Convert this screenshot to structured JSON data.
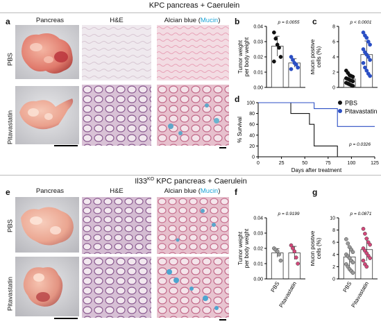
{
  "top_title": "KPC pancreas + Caerulein",
  "bottom_title": "Il33",
  "bottom_title_sup": "KO",
  "bottom_title_rest": " KPC pancreas + Caerulein",
  "panel_labels": {
    "a": "a",
    "b": "b",
    "c": "c",
    "d": "d",
    "e": "e",
    "f": "f",
    "g": "g"
  },
  "columns": {
    "pancreas": "Pancreas",
    "he": "H&E",
    "alcian_prefix": "Alcian blue (",
    "alcian_mucin": "Mucin",
    "alcian_suffix": ")"
  },
  "rows": {
    "pbs": "PBS",
    "pit": "Pitavastatin"
  },
  "colors": {
    "pbs": "#111111",
    "pit": "#2b4fc4",
    "mucin": "#1ba3d6",
    "pink": "#d2487a",
    "gray": "#9a9a9a"
  },
  "chart_data": [
    {
      "id": "b",
      "type": "scatter",
      "ylabel_line1": "Tumor weight",
      "ylabel_line2": "per body weight",
      "pvalue": "p = 0.0055",
      "ylim": [
        0,
        0.04
      ],
      "yticks": [
        "0.00",
        "0.01",
        "0.02",
        "0.03",
        "0.04"
      ],
      "categories": [
        "PBS",
        "Pitavastatin"
      ],
      "series": [
        {
          "values": [
            0.036,
            0.032,
            0.028,
            0.026,
            0.02,
            0.017
          ]
        },
        {
          "values": [
            0.02,
            0.018,
            0.016,
            0.015,
            0.013,
            0.012
          ]
        }
      ],
      "means": [
        0.027,
        0.016
      ]
    },
    {
      "id": "c",
      "type": "scatter",
      "ylabel_line1": "Mucin positive",
      "ylabel_line2": "cells (%)",
      "pvalue": "p < 0.0001",
      "ylim": [
        0,
        8
      ],
      "yticks": [
        "0",
        "2",
        "4",
        "6",
        "8"
      ],
      "categories": [
        "PBS",
        "Pitavastatin"
      ],
      "series": [
        {
          "values": [
            2.2,
            1.9,
            1.6,
            1.5,
            1.4,
            1.2,
            1.1,
            1.0,
            0.9,
            0.8,
            0.6,
            0.5,
            0.4,
            0.3,
            0.2
          ]
        },
        {
          "values": [
            7.2,
            6.8,
            6.5,
            6.0,
            5.6,
            5.0,
            4.6,
            4.3,
            4.0,
            3.6,
            3.2,
            2.6,
            2.2,
            1.8,
            1.5
          ]
        }
      ],
      "means": [
        1.1,
        4.3
      ]
    },
    {
      "id": "d",
      "type": "line",
      "ylabel": "% Survival",
      "xlabel": "Days after treatment",
      "xticks": [
        "0",
        "25",
        "50",
        "75",
        "100",
        "125"
      ],
      "yticks": [
        "0",
        "20",
        "40",
        "60",
        "80",
        "100"
      ],
      "xlim": [
        0,
        125
      ],
      "ylim": [
        0,
        100
      ],
      "pvalue": "p = 0.0326",
      "series": [
        {
          "name": "PBS",
          "x": [
            0,
            35,
            35,
            55,
            55,
            60,
            60,
            85,
            85
          ],
          "y": [
            100,
            100,
            80,
            80,
            60,
            60,
            20,
            20,
            0
          ]
        },
        {
          "name": "Pitavastatin",
          "x": [
            0,
            60,
            60,
            85,
            85,
            125
          ],
          "y": [
            100,
            100,
            89,
            89,
            56,
            56
          ]
        }
      ]
    },
    {
      "id": "f",
      "type": "scatter",
      "ylabel_line1": "Tumor weight",
      "ylabel_line2": "per body weight",
      "pvalue": "p = 0.9199",
      "ylim": [
        0,
        0.04
      ],
      "yticks": [
        "0.00",
        "0.01",
        "0.02",
        "0.03",
        "0.04"
      ],
      "categories": [
        "PBS",
        "Pitavastatin"
      ],
      "series": [
        {
          "values": [
            0.02,
            0.019,
            0.018,
            0.016,
            0.012
          ]
        },
        {
          "values": [
            0.022,
            0.02,
            0.018,
            0.014,
            0.01
          ]
        }
      ],
      "means": [
        0.017,
        0.017
      ]
    },
    {
      "id": "g",
      "type": "scatter",
      "ylabel_line1": "Mucin positive",
      "ylabel_line2": "cells (%)",
      "pvalue": "p = 0.0871",
      "ylim": [
        0,
        10
      ],
      "yticks": [
        "0",
        "2",
        "4",
        "6",
        "8",
        "10"
      ],
      "categories": [
        "PBS",
        "Pitavastatin"
      ],
      "series": [
        {
          "values": [
            6.5,
            5.8,
            5.2,
            4.8,
            4.4,
            4.0,
            3.7,
            3.4,
            3.0,
            2.7,
            2.4,
            2.0,
            1.6,
            1.3,
            1.0
          ]
        },
        {
          "values": [
            8.2,
            7.4,
            6.6,
            6.0,
            5.6,
            5.0,
            4.6,
            4.2,
            3.8,
            3.4,
            3.0,
            2.4,
            2.0
          ]
        }
      ],
      "means": [
        3.6,
        4.8
      ]
    }
  ]
}
